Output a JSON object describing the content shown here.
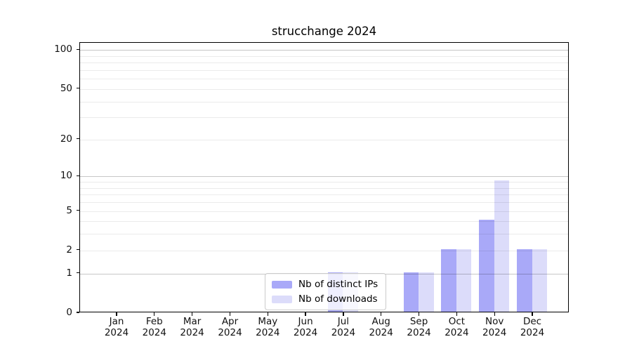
{
  "chart_data": {
    "type": "bar",
    "title": "strucchange 2024",
    "x": {
      "months": [
        "Jan",
        "Feb",
        "Mar",
        "Apr",
        "May",
        "Jun",
        "Jul",
        "Aug",
        "Sep",
        "Oct",
        "Nov",
        "Dec"
      ],
      "year": "2024"
    },
    "series": [
      {
        "name": "Nb of distinct IPs",
        "color": "#a9a9f8",
        "values": [
          0,
          0,
          0,
          0,
          0,
          0,
          1,
          0,
          1,
          2,
          4,
          2
        ]
      },
      {
        "name": "Nb of downloads",
        "color": "#dcdcfa",
        "values": [
          0,
          0,
          0,
          0,
          0,
          0,
          1,
          0,
          1,
          2,
          9,
          2
        ]
      }
    ],
    "y_axis": {
      "scale": "log1p",
      "ticks": [
        0,
        1,
        2,
        5,
        10,
        20,
        50,
        100
      ],
      "major_gridlines": [
        1,
        10,
        100
      ],
      "minor_gridlines": [
        2,
        3,
        4,
        5,
        6,
        7,
        8,
        9,
        20,
        30,
        40,
        50,
        60,
        70,
        80,
        90
      ],
      "ylim": [
        0,
        114
      ]
    },
    "grid": "horizontal",
    "legend": {
      "position": "inside-lower-center",
      "entries": [
        "Nb of distinct IPs",
        "Nb of downloads"
      ]
    }
  }
}
